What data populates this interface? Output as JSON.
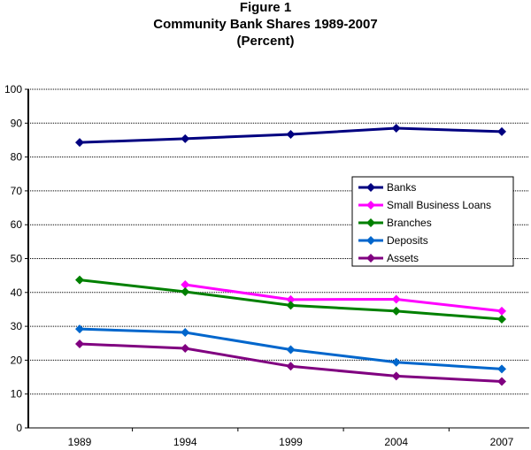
{
  "chart_data": {
    "type": "line",
    "title_lines": [
      "Figure 1",
      "Community Bank Shares 1989-2007",
      "(Percent)"
    ],
    "xlabel": "",
    "ylabel": "",
    "categories": [
      "1989",
      "1994",
      "1999",
      "2004",
      "2007"
    ],
    "ylim": [
      0,
      100
    ],
    "yticks": [
      0,
      10,
      20,
      30,
      40,
      50,
      60,
      70,
      80,
      90,
      100
    ],
    "grid": true,
    "legend_position": "right",
    "series": [
      {
        "name": "Banks",
        "color": "#000080",
        "values": [
          84.3,
          85.4,
          86.7,
          88.5,
          87.5
        ]
      },
      {
        "name": "Small Business Loans",
        "color": "#FF00FF",
        "values": [
          null,
          42.3,
          37.9,
          38.0,
          34.5
        ]
      },
      {
        "name": "Branches",
        "color": "#008000",
        "values": [
          43.7,
          40.2,
          36.2,
          34.5,
          32.1
        ]
      },
      {
        "name": "Deposits",
        "color": "#0066CC",
        "values": [
          29.2,
          28.2,
          23.1,
          19.4,
          17.4
        ]
      },
      {
        "name": "Assets",
        "color": "#800080",
        "values": [
          24.8,
          23.5,
          18.2,
          15.3,
          13.7
        ]
      }
    ]
  }
}
